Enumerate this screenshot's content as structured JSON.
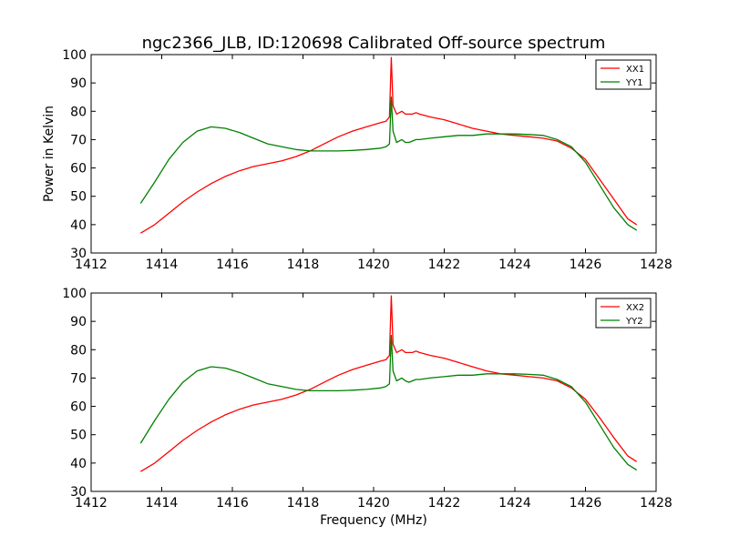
{
  "figure": {
    "title": "ngc2366_JLB, ID:120698 Calibrated Off-source spectrum"
  },
  "colors": {
    "xx": "#ff0000",
    "yy": "#008000",
    "axes": "#000000"
  },
  "chart_data": [
    {
      "type": "line",
      "title": "ngc2366_JLB, ID:120698 Calibrated Off-source spectrum",
      "xlabel": "",
      "ylabel": "Power in Kelvin",
      "xlim": [
        1412,
        1428
      ],
      "ylim": [
        30,
        100
      ],
      "xticks": [
        1412,
        1414,
        1416,
        1418,
        1420,
        1422,
        1424,
        1426,
        1428
      ],
      "yticks": [
        30,
        40,
        50,
        60,
        70,
        80,
        90,
        100
      ],
      "grid": false,
      "legend": "top-right",
      "series": [
        {
          "name": "XX1",
          "color": "#ff0000",
          "x": [
            1413.4,
            1413.8,
            1414.2,
            1414.6,
            1415.0,
            1415.4,
            1415.8,
            1416.2,
            1416.6,
            1417.0,
            1417.4,
            1417.8,
            1418.2,
            1418.6,
            1419.0,
            1419.4,
            1419.8,
            1420.2,
            1420.35,
            1420.45,
            1420.5,
            1420.55,
            1420.65,
            1420.8,
            1420.9,
            1421.0,
            1421.1,
            1421.2,
            1421.3,
            1421.6,
            1422.0,
            1422.4,
            1422.8,
            1423.2,
            1423.6,
            1424.0,
            1424.4,
            1424.8,
            1425.2,
            1425.6,
            1426.0,
            1426.4,
            1426.8,
            1427.2,
            1427.45
          ],
          "y": [
            37,
            40,
            44,
            48,
            51.5,
            54.5,
            57,
            59,
            60.5,
            61.5,
            62.5,
            64,
            66,
            68.5,
            71,
            73,
            74.5,
            76,
            76.5,
            78,
            99,
            82,
            79,
            80,
            79,
            79,
            79,
            79.5,
            79,
            78,
            77,
            75.5,
            74,
            73,
            72,
            71.5,
            71,
            70.5,
            69.5,
            67,
            63,
            56,
            49,
            42,
            40
          ]
        },
        {
          "name": "YY1",
          "color": "#008000",
          "x": [
            1413.4,
            1413.8,
            1414.2,
            1414.6,
            1415.0,
            1415.4,
            1415.8,
            1416.2,
            1416.6,
            1417.0,
            1417.4,
            1417.8,
            1418.2,
            1418.6,
            1419.0,
            1419.4,
            1419.8,
            1420.2,
            1420.35,
            1420.45,
            1420.5,
            1420.55,
            1420.65,
            1420.8,
            1420.9,
            1421.0,
            1421.1,
            1421.2,
            1421.3,
            1421.6,
            1422.0,
            1422.4,
            1422.8,
            1423.2,
            1423.6,
            1424.0,
            1424.4,
            1424.8,
            1425.2,
            1425.6,
            1426.0,
            1426.4,
            1426.8,
            1427.2,
            1427.45
          ],
          "y": [
            47.5,
            55,
            63,
            69,
            73,
            74.5,
            74,
            72.5,
            70.5,
            68.5,
            67.5,
            66.5,
            66,
            66,
            66,
            66.2,
            66.5,
            67,
            67.5,
            68.5,
            85,
            73,
            69,
            70,
            69,
            69,
            69.5,
            70,
            70,
            70.5,
            71,
            71.5,
            71.5,
            72,
            72,
            72,
            71.8,
            71.5,
            70,
            67.5,
            62,
            54,
            46,
            40,
            38
          ]
        }
      ]
    },
    {
      "type": "line",
      "title": "",
      "xlabel": "Frequency (MHz)",
      "ylabel": "",
      "xlim": [
        1412,
        1428
      ],
      "ylim": [
        30,
        100
      ],
      "xticks": [
        1412,
        1414,
        1416,
        1418,
        1420,
        1422,
        1424,
        1426,
        1428
      ],
      "yticks": [
        30,
        40,
        50,
        60,
        70,
        80,
        90,
        100
      ],
      "grid": false,
      "legend": "top-right",
      "series": [
        {
          "name": "XX2",
          "color": "#ff0000",
          "x": [
            1413.4,
            1413.8,
            1414.2,
            1414.6,
            1415.0,
            1415.4,
            1415.8,
            1416.2,
            1416.6,
            1417.0,
            1417.4,
            1417.8,
            1418.2,
            1418.6,
            1419.0,
            1419.4,
            1419.8,
            1420.2,
            1420.35,
            1420.45,
            1420.5,
            1420.55,
            1420.65,
            1420.8,
            1420.9,
            1421.0,
            1421.1,
            1421.2,
            1421.3,
            1421.6,
            1422.0,
            1422.4,
            1422.8,
            1423.2,
            1423.6,
            1424.0,
            1424.4,
            1424.8,
            1425.2,
            1425.6,
            1426.0,
            1426.4,
            1426.8,
            1427.2,
            1427.45
          ],
          "y": [
            37,
            40,
            44,
            48,
            51.5,
            54.5,
            57,
            59,
            60.5,
            61.5,
            62.5,
            64,
            66,
            68.5,
            71,
            73,
            74.5,
            76,
            76.5,
            78,
            99,
            82,
            79,
            80,
            79,
            79,
            79,
            79.5,
            79,
            78,
            77,
            75.5,
            74,
            72.5,
            71.5,
            71,
            70.5,
            70,
            69,
            66.5,
            62.5,
            56,
            49,
            42.5,
            40.5
          ]
        },
        {
          "name": "YY2",
          "color": "#008000",
          "x": [
            1413.4,
            1413.8,
            1414.2,
            1414.6,
            1415.0,
            1415.4,
            1415.8,
            1416.2,
            1416.6,
            1417.0,
            1417.4,
            1417.8,
            1418.2,
            1418.6,
            1419.0,
            1419.4,
            1419.8,
            1420.2,
            1420.35,
            1420.45,
            1420.5,
            1420.55,
            1420.65,
            1420.8,
            1420.9,
            1421.0,
            1421.1,
            1421.2,
            1421.3,
            1421.6,
            1422.0,
            1422.4,
            1422.8,
            1423.2,
            1423.6,
            1424.0,
            1424.4,
            1424.8,
            1425.2,
            1425.6,
            1426.0,
            1426.4,
            1426.8,
            1427.2,
            1427.45
          ],
          "y": [
            47,
            55,
            62.5,
            68.5,
            72.5,
            74,
            73.5,
            72,
            70,
            68,
            67,
            66,
            65.5,
            65.5,
            65.5,
            65.7,
            66,
            66.5,
            67,
            68,
            85,
            72.5,
            69,
            70,
            69,
            68.5,
            69,
            69.5,
            69.5,
            70,
            70.5,
            71,
            71,
            71.5,
            71.5,
            71.5,
            71.3,
            71,
            69.5,
            67,
            61.5,
            53.5,
            45.5,
            39.5,
            37.5
          ]
        }
      ]
    }
  ]
}
